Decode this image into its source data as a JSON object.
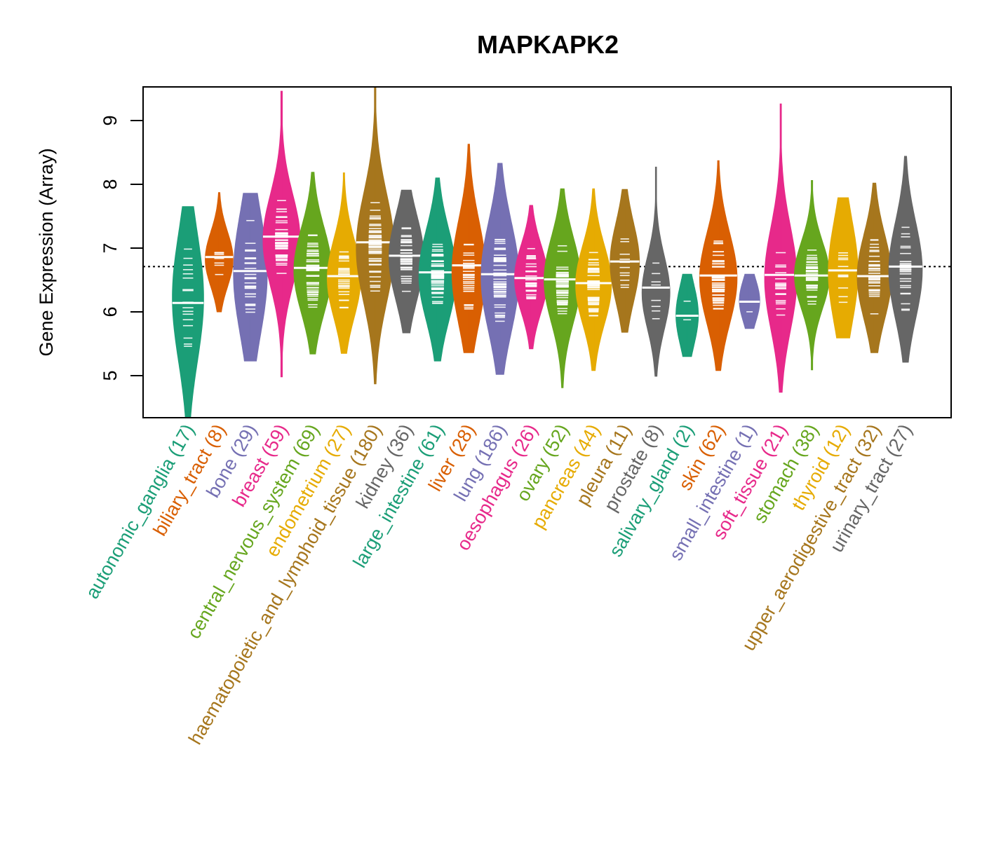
{
  "chart_data": {
    "type": "violin",
    "title": "MAPKAPK2",
    "xlabel": "",
    "ylabel": "Gene Expression (Array)",
    "ylim": [
      4.35,
      9.55
    ],
    "yticks": [
      5,
      6,
      7,
      8,
      9
    ],
    "reference_line": {
      "value": 6.71,
      "style": "dotted",
      "color": "#000000"
    },
    "grid": false,
    "categories": [
      {
        "name": "autonomic_ganglia",
        "n": 17,
        "color": "#1B9E77",
        "min": 4.35,
        "max": 7.65,
        "median": 6.14,
        "q1": 5.7,
        "q3": 6.75
      },
      {
        "name": "biliary_tract",
        "n": 8,
        "color": "#D95F02",
        "min": 6.0,
        "max": 7.87,
        "median": 6.86,
        "q1": 6.6,
        "q3": 7.05
      },
      {
        "name": "bone",
        "n": 29,
        "color": "#7570B3",
        "min": 5.23,
        "max": 7.86,
        "median": 6.64,
        "q1": 6.1,
        "q3": 7.1
      },
      {
        "name": "breast",
        "n": 59,
        "color": "#E7298A",
        "min": 4.98,
        "max": 9.46,
        "median": 7.18,
        "q1": 6.75,
        "q3": 7.5
      },
      {
        "name": "central_nervous_system",
        "n": 69,
        "color": "#66A61E",
        "min": 5.34,
        "max": 8.19,
        "median": 6.69,
        "q1": 6.3,
        "q3": 7.0
      },
      {
        "name": "endometrium",
        "n": 27,
        "color": "#E6AB02",
        "min": 5.35,
        "max": 8.18,
        "median": 6.56,
        "q1": 6.2,
        "q3": 6.85
      },
      {
        "name": "haematopoietic_and_lymphoid_tissue",
        "n": 180,
        "color": "#A6761D",
        "min": 4.87,
        "max": 9.53,
        "median": 7.09,
        "q1": 6.55,
        "q3": 7.45
      },
      {
        "name": "kidney",
        "n": 36,
        "color": "#666666",
        "min": 5.67,
        "max": 7.91,
        "median": 6.88,
        "q1": 6.5,
        "q3": 7.2
      },
      {
        "name": "large_intestine",
        "n": 61,
        "color": "#1B9E77",
        "min": 5.23,
        "max": 8.1,
        "median": 6.62,
        "q1": 6.2,
        "q3": 6.95
      },
      {
        "name": "liver",
        "n": 28,
        "color": "#D95F02",
        "min": 5.36,
        "max": 8.63,
        "median": 6.73,
        "q1": 6.2,
        "q3": 7.05
      },
      {
        "name": "lung",
        "n": 186,
        "color": "#7570B3",
        "min": 5.02,
        "max": 8.33,
        "median": 6.59,
        "q1": 6.1,
        "q3": 7.0
      },
      {
        "name": "oesophagus",
        "n": 26,
        "color": "#E7298A",
        "min": 5.42,
        "max": 7.67,
        "median": 6.53,
        "q1": 6.25,
        "q3": 6.8
      },
      {
        "name": "ovary",
        "n": 52,
        "color": "#66A61E",
        "min": 4.81,
        "max": 7.93,
        "median": 6.51,
        "q1": 6.15,
        "q3": 6.85
      },
      {
        "name": "pancreas",
        "n": 44,
        "color": "#E6AB02",
        "min": 5.08,
        "max": 7.93,
        "median": 6.45,
        "q1": 6.1,
        "q3": 6.75
      },
      {
        "name": "pleura",
        "n": 11,
        "color": "#A6761D",
        "min": 5.68,
        "max": 7.92,
        "median": 6.79,
        "q1": 6.45,
        "q3": 7.1
      },
      {
        "name": "prostate",
        "n": 8,
        "color": "#666666",
        "min": 4.99,
        "max": 8.27,
        "median": 6.38,
        "q1": 6.0,
        "q3": 6.6
      },
      {
        "name": "salivary_gland",
        "n": 2,
        "color": "#1B9E77",
        "min": 5.3,
        "max": 6.59,
        "median": 5.94,
        "q1": 5.7,
        "q3": 6.2
      },
      {
        "name": "skin",
        "n": 62,
        "color": "#D95F02",
        "min": 5.08,
        "max": 8.37,
        "median": 6.57,
        "q1": 6.15,
        "q3": 6.9
      },
      {
        "name": "small_intestine",
        "n": 1,
        "color": "#7570B3",
        "min": 5.74,
        "max": 6.59,
        "median": 6.16,
        "q1": 6.0,
        "q3": 6.35
      },
      {
        "name": "soft_tissue",
        "n": 21,
        "color": "#E7298A",
        "min": 4.74,
        "max": 9.26,
        "median": 6.58,
        "q1": 6.1,
        "q3": 6.95
      },
      {
        "name": "stomach",
        "n": 38,
        "color": "#66A61E",
        "min": 5.09,
        "max": 8.06,
        "median": 6.57,
        "q1": 6.3,
        "q3": 6.85
      },
      {
        "name": "thyroid",
        "n": 12,
        "color": "#E6AB02",
        "min": 5.59,
        "max": 7.79,
        "median": 6.65,
        "q1": 6.2,
        "q3": 7.05
      },
      {
        "name": "upper_aerodigestive_tract",
        "n": 32,
        "color": "#A6761D",
        "min": 5.36,
        "max": 8.02,
        "median": 6.56,
        "q1": 6.2,
        "q3": 6.9
      },
      {
        "name": "urinary_tract",
        "n": 27,
        "color": "#666666",
        "min": 5.21,
        "max": 8.44,
        "median": 6.71,
        "q1": 6.25,
        "q3": 7.05
      }
    ]
  }
}
